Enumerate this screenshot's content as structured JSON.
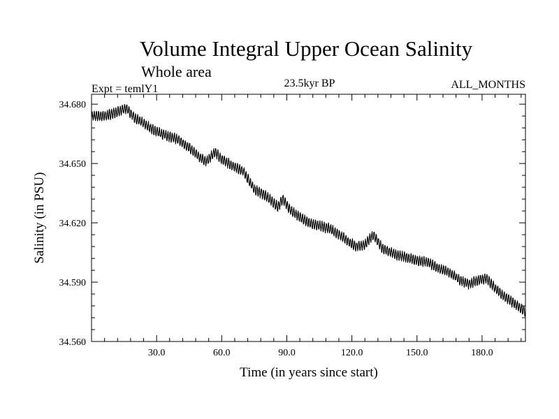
{
  "chart_data": {
    "type": "line",
    "title": "Volume Integral Upper Ocean Salinity",
    "subtitle": "Whole area",
    "left_label": "Expt = temlY1",
    "center_label": "23.5kyr BP",
    "right_label": "ALL_MONTHS",
    "xlabel": "Time (in years since start)",
    "ylabel": "Salinity (in PSU)",
    "xlim": [
      0,
      200
    ],
    "ylim": [
      34.56,
      34.685
    ],
    "xticks": [
      30,
      60,
      90,
      120,
      150,
      180
    ],
    "xtick_labels": [
      "30.0",
      "60.0",
      "90.0",
      "120.0",
      "150.0",
      "180.0"
    ],
    "yticks": [
      34.56,
      34.59,
      34.62,
      34.65,
      34.68
    ],
    "ytick_labels": [
      "34.560",
      "34.590",
      "34.620",
      "34.650",
      "34.680"
    ],
    "seasonal_amplitude": 0.0022,
    "series": [
      {
        "name": "Salinity",
        "trend_x": [
          0,
          6,
          12,
          16,
          20,
          30,
          40,
          45,
          50,
          53,
          57,
          60,
          65,
          70,
          75,
          80,
          86,
          88,
          92,
          100,
          110,
          118,
          122,
          126,
          130,
          134,
          140,
          150,
          155,
          160,
          165,
          170,
          174,
          178,
          182,
          186,
          190,
          195,
          200
        ],
        "trend_y": [
          34.674,
          34.674,
          34.676,
          34.678,
          34.673,
          34.666,
          34.662,
          34.658,
          34.653,
          34.651,
          34.656,
          34.652,
          34.649,
          34.646,
          34.637,
          34.634,
          34.628,
          34.632,
          34.626,
          34.62,
          34.617,
          34.611,
          34.608,
          34.609,
          34.614,
          34.607,
          34.604,
          34.601,
          34.6,
          34.597,
          34.595,
          34.591,
          34.589,
          34.591,
          34.592,
          34.587,
          34.583,
          34.579,
          34.575
        ]
      }
    ]
  }
}
